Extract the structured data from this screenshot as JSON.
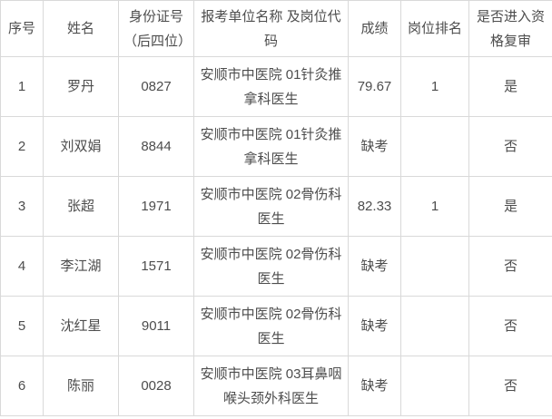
{
  "table": {
    "headers": [
      "序号",
      "姓名",
      "身份证号 （后四位）",
      "报考单位名称 及岗位代码",
      "成绩",
      "岗位排名",
      "是否进入资格复审"
    ],
    "rows": [
      [
        "1",
        "罗丹",
        "0827",
        "安顺市中医院 01针灸推拿科医生",
        "79.67",
        "1",
        "是"
      ],
      [
        "2",
        "刘双娟",
        "8844",
        "安顺市中医院 01针灸推拿科医生",
        "缺考",
        "",
        "否"
      ],
      [
        "3",
        "张超",
        "1971",
        "安顺市中医院 02骨伤科医生",
        "82.33",
        "1",
        "是"
      ],
      [
        "4",
        "李江湖",
        "1571",
        "安顺市中医院 02骨伤科医生",
        "缺考",
        "",
        "否"
      ],
      [
        "5",
        "沈红星",
        "9011",
        "安顺市中医院 02骨伤科医生",
        "缺考",
        "",
        "否"
      ],
      [
        "6",
        "陈丽",
        "0028",
        "安顺市中医院 03耳鼻咽喉头颈外科医生",
        "缺考",
        "",
        "否"
      ]
    ],
    "colors": {
      "text": "#4d4d4d",
      "border": "#d9d9d9",
      "background": "#ffffff"
    }
  }
}
